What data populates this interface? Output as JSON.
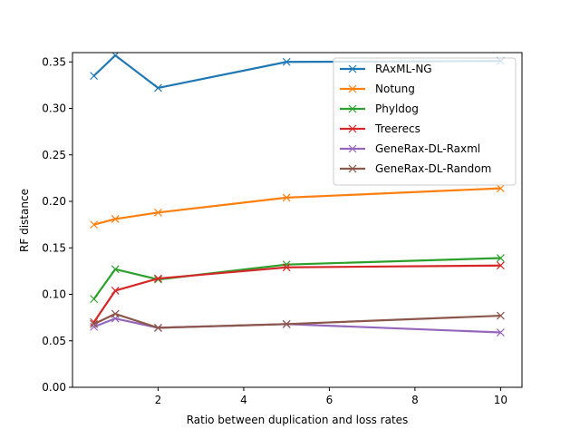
{
  "chart_data": {
    "type": "line",
    "title": "",
    "xlabel": "Ratio between duplication and loss rates",
    "ylabel": "RF distance",
    "xlim": [
      0.0,
      10.5
    ],
    "ylim": [
      0.0,
      0.36
    ],
    "x_ticks": [
      2,
      4,
      6,
      8,
      10
    ],
    "x_tick_labels": [
      "2",
      "4",
      "6",
      "8",
      "10"
    ],
    "y_ticks": [
      0.0,
      0.05,
      0.1,
      0.15,
      0.2,
      0.25,
      0.3,
      0.35
    ],
    "y_tick_labels": [
      "0.00",
      "0.05",
      "0.10",
      "0.15",
      "0.20",
      "0.25",
      "0.30",
      "0.35"
    ],
    "x": [
      0.5,
      1,
      2,
      5,
      10
    ],
    "grid": false,
    "legend_position": "top-right",
    "marker": "x",
    "series": [
      {
        "name": "RAxML-NG",
        "color": "#1f77b4",
        "values": [
          0.335,
          0.357,
          0.322,
          0.35,
          0.351
        ]
      },
      {
        "name": "Notung",
        "color": "#ff7f0e",
        "values": [
          0.175,
          0.181,
          0.188,
          0.204,
          0.214
        ]
      },
      {
        "name": "Phyldog",
        "color": "#2ca02c",
        "values": [
          0.095,
          0.127,
          0.116,
          0.132,
          0.139
        ]
      },
      {
        "name": "Treerecs",
        "color": "#d62728",
        "values": [
          0.07,
          0.104,
          0.117,
          0.129,
          0.131
        ]
      },
      {
        "name": "GeneRax-DL-Raxml",
        "color": "#9467bd",
        "values": [
          0.065,
          0.074,
          0.064,
          0.068,
          0.059
        ]
      },
      {
        "name": "GeneRax-DL-Random",
        "color": "#8c564b",
        "values": [
          0.068,
          0.079,
          0.064,
          0.068,
          0.077
        ]
      }
    ]
  }
}
